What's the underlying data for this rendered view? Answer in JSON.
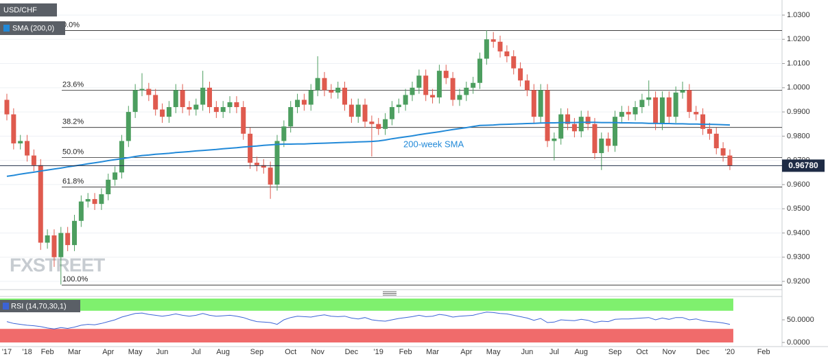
{
  "chart_data": [
    {
      "type": "candlestick",
      "title": "USD/CHF",
      "watermark": "FXSTREET",
      "up_color": "#4c9e5f",
      "down_color": "#df5a4e",
      "categories": [
        "'17",
        null,
        null,
        "'18",
        null,
        null,
        "Feb",
        null,
        null,
        null,
        "Mar",
        null,
        null,
        null,
        null,
        "Apr",
        null,
        null,
        null,
        "May",
        null,
        null,
        null,
        "Jun",
        null,
        null,
        null,
        null,
        "Jul",
        null,
        null,
        null,
        "Aug",
        null,
        null,
        null,
        null,
        "Sep",
        null,
        null,
        null,
        null,
        "Oct",
        null,
        null,
        null,
        "Nov",
        null,
        null,
        null,
        null,
        "Dec",
        null,
        null,
        null,
        "'19",
        null,
        null,
        null,
        "Feb",
        null,
        null,
        null,
        "Mar",
        null,
        null,
        null,
        null,
        "Apr",
        null,
        null,
        null,
        "May",
        null,
        null,
        null,
        null,
        "Jun",
        null,
        null,
        null,
        "Jul",
        null,
        null,
        null,
        "Aug",
        null,
        null,
        null,
        null,
        "Sep",
        null,
        null,
        null,
        "Oct",
        null,
        null,
        null,
        "Nov",
        null,
        null,
        null,
        null,
        "Dec",
        null,
        null,
        null,
        "'20",
        null,
        null,
        null,
        null,
        "Feb"
      ],
      "ohlc": [
        [
          0.995,
          0.9975,
          0.9865,
          0.989
        ],
        [
          0.989,
          0.9915,
          0.9745,
          0.977
        ],
        [
          0.977,
          0.9805,
          0.9745,
          0.978
        ],
        [
          0.978,
          0.9805,
          0.9695,
          0.972
        ],
        [
          0.972,
          0.9745,
          0.9655,
          0.968
        ],
        [
          0.968,
          0.9705,
          0.933,
          0.936
        ],
        [
          0.936,
          0.9415,
          0.9335,
          0.939
        ],
        [
          0.939,
          0.9415,
          0.926,
          0.93
        ],
        [
          0.93,
          0.9425,
          0.9187,
          0.94
        ],
        [
          0.94,
          0.9425,
          0.9325,
          0.935
        ],
        [
          0.935,
          0.9475,
          0.9325,
          0.945
        ],
        [
          0.945,
          0.9555,
          0.9425,
          0.953
        ],
        [
          0.953,
          0.9565,
          0.9505,
          0.954
        ],
        [
          0.954,
          0.9565,
          0.9495,
          0.952
        ],
        [
          0.952,
          0.9585,
          0.9495,
          0.956
        ],
        [
          0.956,
          0.9645,
          0.9535,
          0.962
        ],
        [
          0.962,
          0.9675,
          0.9595,
          0.965
        ],
        [
          0.965,
          0.9805,
          0.9625,
          0.978
        ],
        [
          0.978,
          0.9925,
          0.9755,
          0.99
        ],
        [
          0.99,
          1.0015,
          0.9875,
          0.999
        ],
        [
          0.999,
          1.006,
          0.9965,
          0.9995
        ],
        [
          0.9995,
          1.002,
          0.9945,
          0.997
        ],
        [
          0.997,
          0.9995,
          0.9885,
          0.991
        ],
        [
          0.991,
          0.9935,
          0.9855,
          0.988
        ],
        [
          0.988,
          0.9945,
          0.9855,
          0.992
        ],
        [
          0.992,
          1.0015,
          0.9895,
          0.999
        ],
        [
          0.999,
          1.0015,
          0.9895,
          0.992
        ],
        [
          0.992,
          0.9945,
          0.9885,
          0.991
        ],
        [
          0.991,
          0.9955,
          0.9885,
          0.993
        ],
        [
          0.993,
          1.007,
          0.9905,
          1.0
        ],
        [
          1.0,
          1.0025,
          0.9895,
          0.992
        ],
        [
          0.992,
          0.9945,
          0.9875,
          0.99
        ],
        [
          0.99,
          0.9945,
          0.9875,
          0.992
        ],
        [
          0.992,
          0.9965,
          0.9895,
          0.994
        ],
        [
          0.994,
          0.9965,
          0.9895,
          0.992
        ],
        [
          0.992,
          0.9945,
          0.9785,
          0.981
        ],
        [
          0.981,
          0.9835,
          0.9665,
          0.969
        ],
        [
          0.969,
          0.9715,
          0.9655,
          0.968
        ],
        [
          0.968,
          0.9705,
          0.9645,
          0.967
        ],
        [
          0.967,
          0.9695,
          0.9541,
          0.96
        ],
        [
          0.96,
          0.9805,
          0.9575,
          0.978
        ],
        [
          0.978,
          0.9865,
          0.9755,
          0.984
        ],
        [
          0.984,
          0.9945,
          0.9815,
          0.992
        ],
        [
          0.992,
          0.9975,
          0.9895,
          0.995
        ],
        [
          0.995,
          0.9975,
          0.9905,
          0.993
        ],
        [
          0.993,
          1.0015,
          0.9905,
          0.999
        ],
        [
          0.999,
          1.013,
          0.9965,
          1.004
        ],
        [
          1.004,
          1.0065,
          0.9965,
          0.999
        ],
        [
          0.999,
          1.0015,
          0.9955,
          0.998
        ],
        [
          0.998,
          1.0025,
          0.9955,
          1.0
        ],
        [
          1.0,
          1.0025,
          0.9905,
          0.993
        ],
        [
          0.993,
          0.9955,
          0.9855,
          0.988
        ],
        [
          0.988,
          0.9955,
          0.9855,
          0.993
        ],
        [
          0.993,
          0.9955,
          0.9835,
          0.986
        ],
        [
          0.986,
          0.9885,
          0.9716,
          0.985
        ],
        [
          0.985,
          0.9875,
          0.9805,
          0.983
        ],
        [
          0.983,
          0.9895,
          0.9805,
          0.987
        ],
        [
          0.987,
          0.9945,
          0.9845,
          0.992
        ],
        [
          0.992,
          0.9955,
          0.9895,
          0.993
        ],
        [
          0.993,
          0.9995,
          0.9905,
          0.997
        ],
        [
          0.997,
          1.0025,
          0.9945,
          1.0
        ],
        [
          1.0,
          1.0075,
          0.9975,
          1.005
        ],
        [
          1.005,
          1.0075,
          0.9945,
          0.997
        ],
        [
          0.997,
          0.9995,
          0.9935,
          0.996
        ],
        [
          0.996,
          1.0095,
          0.9935,
          1.007
        ],
        [
          1.007,
          1.0095,
          1.0015,
          1.004
        ],
        [
          1.004,
          1.0065,
          0.9925,
          0.995
        ],
        [
          0.995,
          0.9995,
          0.9925,
          0.997
        ],
        [
          0.997,
          1.0025,
          0.9945,
          1.0
        ],
        [
          1.0,
          1.0045,
          0.9975,
          1.002
        ],
        [
          1.002,
          1.0145,
          0.9995,
          1.012
        ],
        [
          1.012,
          1.0237,
          1.0095,
          1.02
        ],
        [
          1.02,
          1.023,
          1.0165,
          1.019
        ],
        [
          1.019,
          1.0215,
          1.0125,
          1.015
        ],
        [
          1.015,
          1.0175,
          1.0105,
          1.013
        ],
        [
          1.013,
          1.0155,
          1.0055,
          1.008
        ],
        [
          1.008,
          1.0105,
          1.0005,
          1.003
        ],
        [
          1.003,
          1.0055,
          0.9965,
          0.999
        ],
        [
          0.999,
          1.0015,
          0.9855,
          0.988
        ],
        [
          0.988,
          1.0015,
          0.9855,
          0.999
        ],
        [
          0.999,
          1.0015,
          0.9755,
          0.978
        ],
        [
          0.978,
          0.9815,
          0.97,
          0.979
        ],
        [
          0.979,
          0.9915,
          0.9765,
          0.989
        ],
        [
          0.989,
          0.9915,
          0.9825,
          0.985
        ],
        [
          0.985,
          0.9875,
          0.9795,
          0.982
        ],
        [
          0.982,
          0.9905,
          0.9795,
          0.988
        ],
        [
          0.988,
          0.9905,
          0.9825,
          0.985
        ],
        [
          0.985,
          0.9875,
          0.9705,
          0.973
        ],
        [
          0.973,
          0.9815,
          0.966,
          0.979
        ],
        [
          0.979,
          0.9815,
          0.9735,
          0.976
        ],
        [
          0.976,
          0.9905,
          0.9735,
          0.988
        ],
        [
          0.988,
          0.9925,
          0.9855,
          0.99
        ],
        [
          0.99,
          0.9925,
          0.9865,
          0.989
        ],
        [
          0.989,
          0.9945,
          0.9865,
          0.992
        ],
        [
          0.992,
          0.9975,
          0.9895,
          0.995
        ],
        [
          0.995,
          1.003,
          0.9925,
          0.996
        ],
        [
          0.996,
          0.9985,
          0.9825,
          0.985
        ],
        [
          0.985,
          0.9985,
          0.9825,
          0.996
        ],
        [
          0.996,
          0.9985,
          0.9855,
          0.988
        ],
        [
          0.988,
          1.0005,
          0.9855,
          0.998
        ],
        [
          0.998,
          1.0025,
          0.9955,
          0.999
        ],
        [
          0.999,
          1.0015,
          0.9875,
          0.99
        ],
        [
          0.99,
          0.9925,
          0.9865,
          0.989
        ],
        [
          0.989,
          0.9915,
          0.9805,
          0.983
        ],
        [
          0.983,
          0.9855,
          0.9785,
          0.981
        ],
        [
          0.981,
          0.9835,
          0.9725,
          0.975
        ],
        [
          0.975,
          0.9775,
          0.9695,
          0.972
        ],
        [
          0.972,
          0.9745,
          0.966,
          0.9678
        ],
        null,
        null,
        null,
        null,
        null
      ],
      "series": [
        {
          "name": "SMA (200,0)",
          "annotation": "200-week SMA",
          "color": "#2189d8",
          "values": [
            0.9634,
            0.9638,
            0.9643,
            0.9647,
            0.9651,
            0.9656,
            0.966,
            0.9664,
            0.9668,
            0.9673,
            0.9677,
            0.9681,
            0.9686,
            0.969,
            0.9694,
            0.9699,
            0.9703,
            0.9707,
            0.9711,
            0.9716,
            0.972,
            0.9722,
            0.9725,
            0.9727,
            0.9729,
            0.9732,
            0.9734,
            0.9736,
            0.9739,
            0.9741,
            0.9743,
            0.9745,
            0.9748,
            0.975,
            0.9752,
            0.9755,
            0.9757,
            0.9759,
            0.9762,
            0.9764,
            0.9766,
            0.9767,
            0.9767,
            0.9768,
            0.9768,
            0.9769,
            0.977,
            0.9771,
            0.9772,
            0.9773,
            0.9774,
            0.9775,
            0.9776,
            0.9777,
            0.9778,
            0.978,
            0.9784,
            0.9789,
            0.9793,
            0.9797,
            0.9801,
            0.9806,
            0.981,
            0.9814,
            0.9818,
            0.9823,
            0.9827,
            0.9831,
            0.9835,
            0.984,
            0.9844,
            0.9845,
            0.9846,
            0.9848,
            0.9849,
            0.985,
            0.9851,
            0.9852,
            0.9853,
            0.9854,
            0.9855,
            0.9855,
            0.9856,
            0.9856,
            0.9856,
            0.9857,
            0.9857,
            0.9857,
            0.9856,
            0.9856,
            0.9856,
            0.9855,
            0.9855,
            0.9854,
            0.9854,
            0.9853,
            0.9853,
            0.9852,
            0.9852,
            0.9851,
            0.9851,
            0.985,
            0.985,
            0.9849,
            0.9849,
            0.9848,
            0.9847,
            0.9846,
            null,
            null,
            null,
            null,
            null
          ]
        }
      ],
      "fib_levels": [
        {
          "label": "0.0%",
          "value": 1.0236
        },
        {
          "label": "23.6%",
          "value": 0.999
        },
        {
          "label": "38.2%",
          "value": 0.9836
        },
        {
          "label": "50.0%",
          "value": 0.9712
        },
        {
          "label": "61.8%",
          "value": 0.959
        },
        {
          "label": "100.0%",
          "value": 0.9185
        }
      ],
      "last_price": {
        "value": 0.9678,
        "label": "0.96780"
      },
      "ylim": [
        0.9175,
        1.0362
      ],
      "yticks": [
        {
          "value": 1.03,
          "label": "1.0300"
        },
        {
          "value": 1.02,
          "label": "1.0200"
        },
        {
          "value": 1.01,
          "label": "1.0100"
        },
        {
          "value": 1.0,
          "label": "1.0000"
        },
        {
          "value": 0.99,
          "label": "0.9900"
        },
        {
          "value": 0.98,
          "label": "0.9800"
        },
        {
          "value": 0.97,
          "label": "0.9700"
        },
        {
          "value": 0.96,
          "label": "0.9600"
        },
        {
          "value": 0.95,
          "label": "0.9500"
        },
        {
          "value": 0.94,
          "label": "0.9400"
        },
        {
          "value": 0.93,
          "label": "0.9300"
        },
        {
          "value": 0.92,
          "label": "0.9200"
        }
      ],
      "grid": true
    },
    {
      "type": "line",
      "title": "RSI (14,70,30,1)",
      "color": "#3b63d6",
      "overbought": 70,
      "oversold": 30,
      "overbought_color": "#7ff06e",
      "oversold_color": "#f06b6b",
      "values": [
        46,
        42,
        40,
        38,
        37,
        35,
        32,
        30,
        33,
        31,
        34,
        38,
        40,
        39,
        42,
        46,
        50,
        56,
        60,
        64,
        65,
        62,
        60,
        58,
        60,
        63,
        60,
        58,
        60,
        64,
        60,
        58,
        59,
        60,
        58,
        55,
        50,
        46,
        45,
        44,
        40,
        50,
        55,
        58,
        57,
        56,
        59,
        61,
        58,
        57,
        58,
        54,
        52,
        55,
        50,
        48,
        47,
        50,
        53,
        55,
        57,
        60,
        57,
        58,
        62,
        60,
        56,
        58,
        59,
        60,
        64,
        67,
        66,
        64,
        63,
        60,
        57,
        54,
        49,
        53,
        44,
        45,
        50,
        49,
        48,
        51,
        49,
        44,
        47,
        46,
        51,
        52,
        52,
        53,
        54,
        55,
        50,
        54,
        51,
        55,
        55,
        50,
        52,
        48,
        46,
        45,
        43,
        40,
        null,
        null,
        null,
        null,
        null
      ],
      "ylim": [
        0,
        100
      ],
      "yticks": [
        {
          "value": 50,
          "label": "50.0000"
        },
        {
          "value": 0,
          "label": "0.0000"
        }
      ]
    }
  ]
}
